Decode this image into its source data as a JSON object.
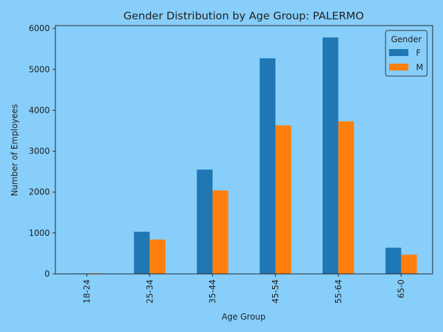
{
  "chart_data": {
    "type": "bar",
    "title": "Gender Distribution by Age Group: PALERMO",
    "xlabel": "Age Group",
    "ylabel": "Number of Employees",
    "categories": [
      "18-24",
      "25-34",
      "35-44",
      "45-54",
      "55-64",
      "65-0"
    ],
    "series": [
      {
        "name": "F",
        "values": [
          10,
          1030,
          2550,
          5270,
          5780,
          640
        ],
        "color": "#1f77b4"
      },
      {
        "name": "M",
        "values": [
          15,
          840,
          2040,
          3630,
          3730,
          470
        ],
        "color": "#ff7f0e"
      }
    ],
    "ylim": [
      0,
      6070
    ],
    "yticks": [
      0,
      1000,
      2000,
      3000,
      4000,
      5000,
      6000
    ],
    "legend": {
      "title": "Gender",
      "placement": "top-right"
    },
    "grid": false,
    "background": "#87cefa"
  }
}
